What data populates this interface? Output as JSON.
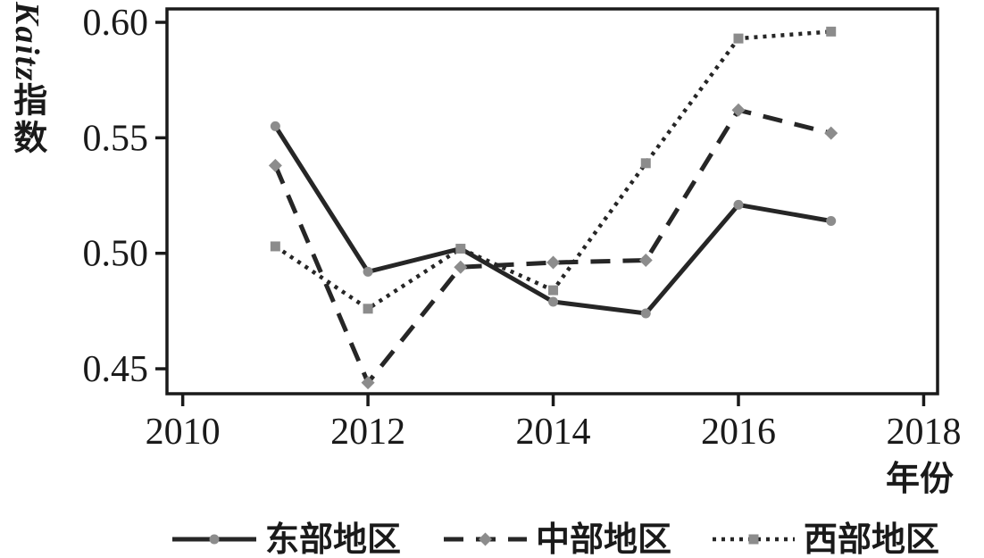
{
  "figure": {
    "background": "#ffffff",
    "line_color": "#262626",
    "axis_color": "#1a1a1a",
    "marker_color": "#8c8c8c",
    "text_color": "#1a1a1a"
  },
  "chart_data": {
    "type": "line",
    "title": "",
    "xlabel": "年份",
    "ylabel": "Kaitz指数",
    "ylabel_parts": {
      "latin": "Kaitz",
      "cjk": "指数"
    },
    "x": [
      2011,
      2012,
      2013,
      2014,
      2015,
      2016,
      2017
    ],
    "x_ticks": [
      2010,
      2012,
      2014,
      2016,
      2018
    ],
    "y_ticks": [
      "0.45",
      "0.50",
      "0.55",
      "0.60"
    ],
    "xlim": [
      2009.83,
      2018.15
    ],
    "ylim": [
      0.4392,
      0.6058
    ],
    "grid": false,
    "legend_position": "bottom",
    "series": [
      {
        "name": "东部地区",
        "line_style": "solid",
        "marker": "circle",
        "values": [
          0.555,
          0.492,
          0.502,
          0.479,
          0.474,
          0.521,
          0.514
        ]
      },
      {
        "name": "中部地区",
        "line_style": "dashed",
        "marker": "diamond",
        "values": [
          0.538,
          0.444,
          0.494,
          0.496,
          0.497,
          0.562,
          0.552
        ]
      },
      {
        "name": "西部地区",
        "line_style": "dotted",
        "marker": "square",
        "values": [
          0.503,
          0.476,
          0.502,
          0.484,
          0.539,
          0.593,
          0.596
        ]
      }
    ]
  }
}
